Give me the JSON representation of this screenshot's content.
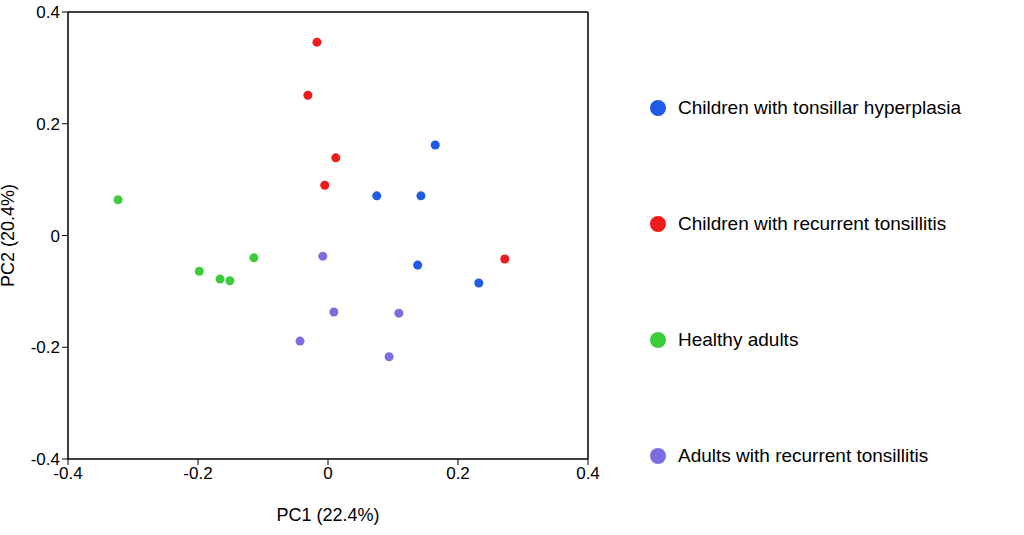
{
  "chart_data": {
    "type": "scatter",
    "x_label": "PC1 (22.4%)",
    "y_label": "PC2 (20.4%)",
    "xlim": [
      -0.4,
      0.4
    ],
    "ylim": [
      -0.4,
      0.4
    ],
    "xticks": [
      -0.4,
      -0.2,
      0,
      0.2,
      0.4
    ],
    "yticks": [
      -0.4,
      -0.2,
      0,
      0.2,
      0.4
    ],
    "legend": "right",
    "marker": "circle",
    "series": [
      {
        "name": "Children with tonsillar hyperplasia",
        "color": "#1f5be6",
        "x": [
          0.165,
          0.075,
          0.143,
          0.138,
          0.232
        ],
        "y": [
          0.162,
          0.071,
          0.071,
          -0.053,
          -0.085
        ]
      },
      {
        "name": "Children with recurrent tonsillitis",
        "color": "#ee1c1c",
        "x": [
          -0.017,
          -0.031,
          0.012,
          -0.005,
          0.272
        ],
        "y": [
          0.346,
          0.251,
          0.139,
          0.09,
          -0.042
        ]
      },
      {
        "name": "Healthy adults",
        "color": "#3ccc3c",
        "x": [
          -0.323,
          -0.198,
          -0.166,
          -0.151,
          -0.114
        ],
        "y": [
          0.064,
          -0.064,
          -0.078,
          -0.081,
          -0.04
        ]
      },
      {
        "name": "Adults with recurrent tonsillitis",
        "color": "#7b6fe0",
        "x": [
          -0.008,
          0.009,
          0.109,
          -0.043,
          0.094
        ],
        "y": [
          -0.037,
          -0.137,
          -0.139,
          -0.189,
          -0.217
        ]
      }
    ]
  }
}
